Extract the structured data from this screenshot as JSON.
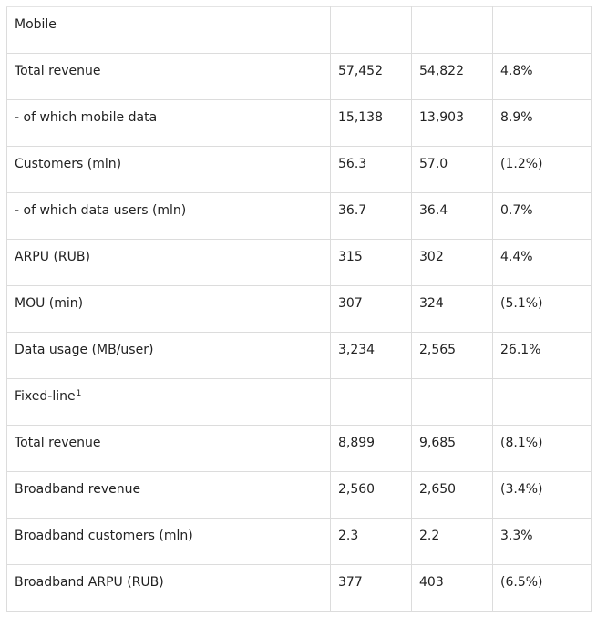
{
  "table": {
    "rows": [
      {
        "label": "Mobile",
        "note": "",
        "c1": "",
        "c2": "",
        "c3": ""
      },
      {
        "label": "Total revenue",
        "note": "",
        "c1": "57,452",
        "c2": "54,822",
        "c3": "4.8%"
      },
      {
        "label": "- of which mobile data",
        "note": "",
        "c1": "15,138",
        "c2": "13,903",
        "c3": "8.9%"
      },
      {
        "label": "Customers (mln)",
        "note": "",
        "c1": "56.3",
        "c2": "57.0",
        "c3": "(1.2%)"
      },
      {
        "label": "- of which data users (mln)",
        "note": "",
        "c1": "36.7",
        "c2": "36.4",
        "c3": "0.7%"
      },
      {
        "label": "ARPU (RUB)",
        "note": "",
        "c1": "315",
        "c2": "302",
        "c3": "4.4%"
      },
      {
        "label": "MOU (min)",
        "note": "",
        "c1": "307",
        "c2": "324",
        "c3": "(5.1%)"
      },
      {
        "label": "Data usage (MB/user)",
        "note": "",
        "c1": "3,234",
        "c2": "2,565",
        "c3": "26.1%"
      },
      {
        "label": "Fixed-line",
        "note": "1",
        "c1": "",
        "c2": "",
        "c3": ""
      },
      {
        "label": "Total revenue",
        "note": "",
        "c1": "8,899",
        "c2": "9,685",
        "c3": "(8.1%)"
      },
      {
        "label": "Broadband revenue",
        "note": "",
        "c1": "2,560",
        "c2": "2,650",
        "c3": "(3.4%)"
      },
      {
        "label": "Broadband customers (mln)",
        "note": "",
        "c1": "2.3",
        "c2": "2.2",
        "c3": "3.3%"
      },
      {
        "label": "Broadband ARPU (RUB)",
        "note": "",
        "c1": "377",
        "c2": "403",
        "c3": "(6.5%)"
      }
    ]
  }
}
